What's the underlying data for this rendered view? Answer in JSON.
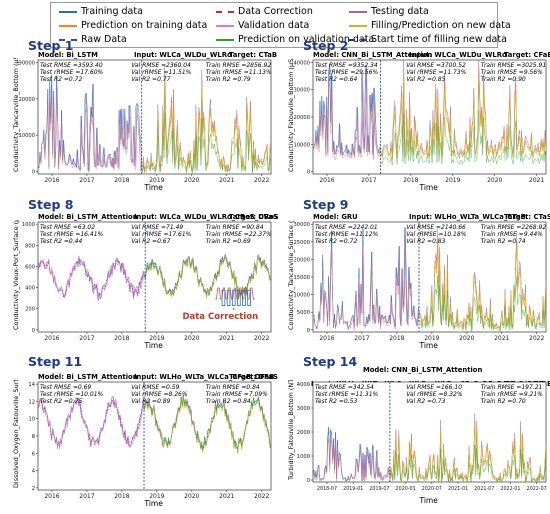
{
  "legend": {
    "items": [
      {
        "label": "Training data",
        "color": "#1f77b4",
        "style": "solid"
      },
      {
        "label": "Prediction on training data",
        "color": "#ff7f0e",
        "style": "solid"
      },
      {
        "label": "Raw Data",
        "color": "#4a4a8a",
        "style": "dashdot"
      },
      {
        "label": "Data Correction",
        "color": "#d62728",
        "style": "dashdot"
      },
      {
        "label": "Validation data",
        "color": "#e377c2",
        "style": "solid"
      },
      {
        "label": "Prediction on validation data",
        "color": "#2ca02c",
        "style": "solid"
      },
      {
        "label": "Testing data",
        "color": "#9467bd",
        "style": "solid"
      },
      {
        "label": "Filling/Prediction on new data",
        "color": "#bcbd22",
        "style": "solid"
      },
      {
        "label": "Start time of filling new data",
        "color": "#1f3a8a",
        "style": "dashed"
      }
    ]
  },
  "chart_data": [
    {
      "step": "Step 1",
      "type": "line",
      "model": "Model: Bi_LSTM",
      "input": "Input: WLCa_WLDu_WLRo",
      "target": "Target: CTaB",
      "ylabel": "Conductivity_Tancarville_Bottom (μS.cm⁻¹)",
      "xlabel": "Time",
      "ylim": [
        0,
        30000
      ],
      "yticks": [
        "0",
        "10000",
        "20000",
        "30000"
      ],
      "xticks": [
        "2016",
        "2017",
        "2018",
        "2019",
        "2020",
        "2021",
        "2022"
      ],
      "stats": {
        "test": [
          "Test RMSE =3593.40",
          "Test rRMSE =17.60%",
          "Test R2 =0.72"
        ],
        "val": [
          "Val RMSE =2360.04",
          "Val rRMSE =11.51%",
          "Val R2 =0.77"
        ],
        "train": [
          "Train RMSE =2856.92",
          "Train rRMSE =11.13%",
          "Train R2 =0.79"
        ]
      }
    },
    {
      "step": "Step 2",
      "type": "line",
      "model": "Model: CNN_Bi_LSTM_Attention",
      "input": "Input: WLCa_WLDu_WLRo",
      "target": "Target: CFaB",
      "ylabel": "Conductivity_Fatouville_Bottom (μS.cm⁻¹)",
      "xlabel": "Time",
      "ylim": [
        0,
        40000
      ],
      "yticks": [
        "0",
        "10000",
        "20000",
        "30000",
        "40000"
      ],
      "xticks": [
        "2016",
        "2017",
        "2018",
        "2019",
        "2020",
        "2021"
      ],
      "stats": {
        "test": [
          "Test RMSE =9352.34",
          "Test rRMSE =29.56%",
          "Test R2 =0.64"
        ],
        "val": [
          "Val RMSE =3700.52",
          "Val rRMSE =11.73%",
          "Val R2 =0.85"
        ],
        "train": [
          "Train RMSE =3025.91",
          "Train rRMSE =9.56%",
          "Train R2 =0.90"
        ]
      }
    },
    {
      "step": "Step 8",
      "type": "line",
      "model": "Model: Bi_LSTM_Attention",
      "input": "Input: WLCa_WLDu_WLRo_CRoS_DRoS",
      "target": "Target: CVaS",
      "ylabel": "Conductivity_Vieux-Port_Surface (μS.cm⁻¹)",
      "xlabel": "Time",
      "ylim": [
        0,
        1000
      ],
      "yticks": [
        "0",
        "200",
        "400",
        "600",
        "800",
        "1000"
      ],
      "xticks": [
        "2016",
        "2017",
        "2018",
        "2019",
        "2020",
        "2021",
        "2022"
      ],
      "annotation": "Data Correction",
      "stats": {
        "test": [
          "Test RMSE =63.02",
          "Test rRMSE =16.41%",
          "Test R2 =0.44"
        ],
        "val": [
          "Val RMSE =71.49",
          "Val rRMSE =17.61%",
          "Val R2 =0.67"
        ],
        "train": [
          "Train RMSE =90.84",
          "Train rRMSE =22.37%",
          "Train R2 =0.69"
        ]
      }
    },
    {
      "step": "Step 9",
      "type": "line",
      "model": "Model: GRU",
      "input": "Input: WLHo_WLTa_WLCa_CTaB",
      "target": "Target: CTaS",
      "ylabel": "Conductivity_Tancarville_Surface (μS.cm⁻¹)",
      "xlabel": "Time",
      "ylim": [
        0,
        30000
      ],
      "yticks": [
        "0",
        "5000",
        "10000",
        "15000",
        "20000",
        "25000",
        "30000"
      ],
      "xticks": [
        "2016",
        "2017",
        "2018",
        "2019",
        "2020",
        "2021",
        "2022"
      ],
      "stats": {
        "test": [
          "Test RMSE =2242.01",
          "Test rRMSE =11.12%",
          "Test R2 =0.72"
        ],
        "val": [
          "Val RMSE =2140.66",
          "Val rRMSE =10.18%",
          "Val R2 =0.83"
        ],
        "train": [
          "Train RMSE =2268.92",
          "Train rRMSE =9.44%",
          "Train R2 =0.74"
        ]
      }
    },
    {
      "step": "Step 11",
      "type": "line",
      "model": "Model: Bi_LSTM_Attention",
      "input": "Input: WLHo_WLTa_WLCa_CFaB_DFaB",
      "target": "Target: DFaS",
      "ylabel": "Dissolved_Oxygen_Fatouville_Surface (mg.L⁻¹)",
      "xlabel": "Time",
      "ylim": [
        0,
        14
      ],
      "yticks": [
        "2",
        "4",
        "6",
        "8",
        "10",
        "12",
        "14"
      ],
      "xticks": [
        "2016",
        "2017",
        "2018",
        "2019",
        "2020",
        "2021",
        "2022"
      ],
      "stats": {
        "test": [
          "Test RMSE =0.69",
          "Test rRMSE =10.01%",
          "Test R2 =0.75"
        ],
        "val": [
          "Val RMSE =0.59",
          "Val rRMSE =8.26%",
          "Val R2 =0.89"
        ],
        "train": [
          "Train RMSE =0.84",
          "Train rRMSE =7.09%",
          "Train R2 =0.84"
        ]
      }
    },
    {
      "step": "Step 14",
      "type": "line",
      "model": "Model: CNN_Bi_LSTM_Attention",
      "input": "Input: WLHo_WLTa_WLCa_WLDu_WLRo_CFaB_DFaB_CTaB_DTaB",
      "target": "Target: TFaB",
      "ylabel": "Turbidity_Fatouville_Bottom (NTU)",
      "xlabel": "Time",
      "ylim": [
        0,
        4000
      ],
      "yticks": [
        "0",
        "1000",
        "2000",
        "3000",
        "4000"
      ],
      "xticks": [
        "2018-07",
        "2019-01",
        "2019-07",
        "2020-01",
        "2020-07",
        "2021-01",
        "2021-07",
        "2022-01",
        "2022-07"
      ],
      "stats": {
        "test": [
          "Test RMSE =342.54",
          "Test rRMSE =11.31%",
          "Test R2 =0.53"
        ],
        "val": [
          "Val RMSE =166.10",
          "Val rRMSE =8.32%",
          "Val R2 =0.73"
        ],
        "train": [
          "Train RMSE =197.21",
          "Train rRMSE =9.21%",
          "Train R2 =0.70"
        ]
      }
    }
  ]
}
